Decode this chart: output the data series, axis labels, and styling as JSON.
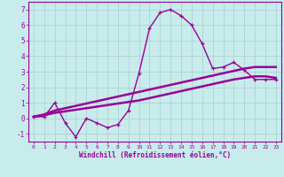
{
  "xlabel": "Windchill (Refroidissement éolien,°C)",
  "bg_color": "#c8ecec",
  "line_color": "#990099",
  "grid_color": "#aacccc",
  "x_values": [
    0,
    1,
    2,
    3,
    4,
    5,
    6,
    7,
    8,
    9,
    10,
    11,
    12,
    13,
    14,
    15,
    16,
    17,
    18,
    19,
    20,
    21,
    22,
    23
  ],
  "y_main": [
    0.1,
    0.1,
    1.0,
    -0.3,
    -1.2,
    0.0,
    -0.3,
    -0.6,
    -0.4,
    0.5,
    2.9,
    5.8,
    6.8,
    7.0,
    6.6,
    6.0,
    4.8,
    3.2,
    3.3,
    3.6,
    3.1,
    2.5,
    2.5,
    2.5
  ],
  "y_straight1": [
    0.1,
    0.25,
    0.5,
    0.65,
    0.8,
    0.95,
    1.1,
    1.25,
    1.4,
    1.55,
    1.7,
    1.85,
    2.0,
    2.15,
    2.3,
    2.45,
    2.6,
    2.75,
    2.9,
    3.05,
    3.2,
    3.3,
    3.3,
    3.3
  ],
  "y_straight2": [
    0.1,
    0.2,
    0.35,
    0.45,
    0.55,
    0.65,
    0.75,
    0.85,
    0.95,
    1.05,
    1.15,
    1.3,
    1.45,
    1.6,
    1.75,
    1.9,
    2.05,
    2.2,
    2.35,
    2.5,
    2.6,
    2.7,
    2.7,
    2.6
  ],
  "xlim": [
    -0.5,
    23.5
  ],
  "ylim": [
    -1.5,
    7.5
  ],
  "yticks": [
    -1,
    0,
    1,
    2,
    3,
    4,
    5,
    6,
    7
  ],
  "xticks": [
    0,
    1,
    2,
    3,
    4,
    5,
    6,
    7,
    8,
    9,
    10,
    11,
    12,
    13,
    14,
    15,
    16,
    17,
    18,
    19,
    20,
    21,
    22,
    23
  ]
}
